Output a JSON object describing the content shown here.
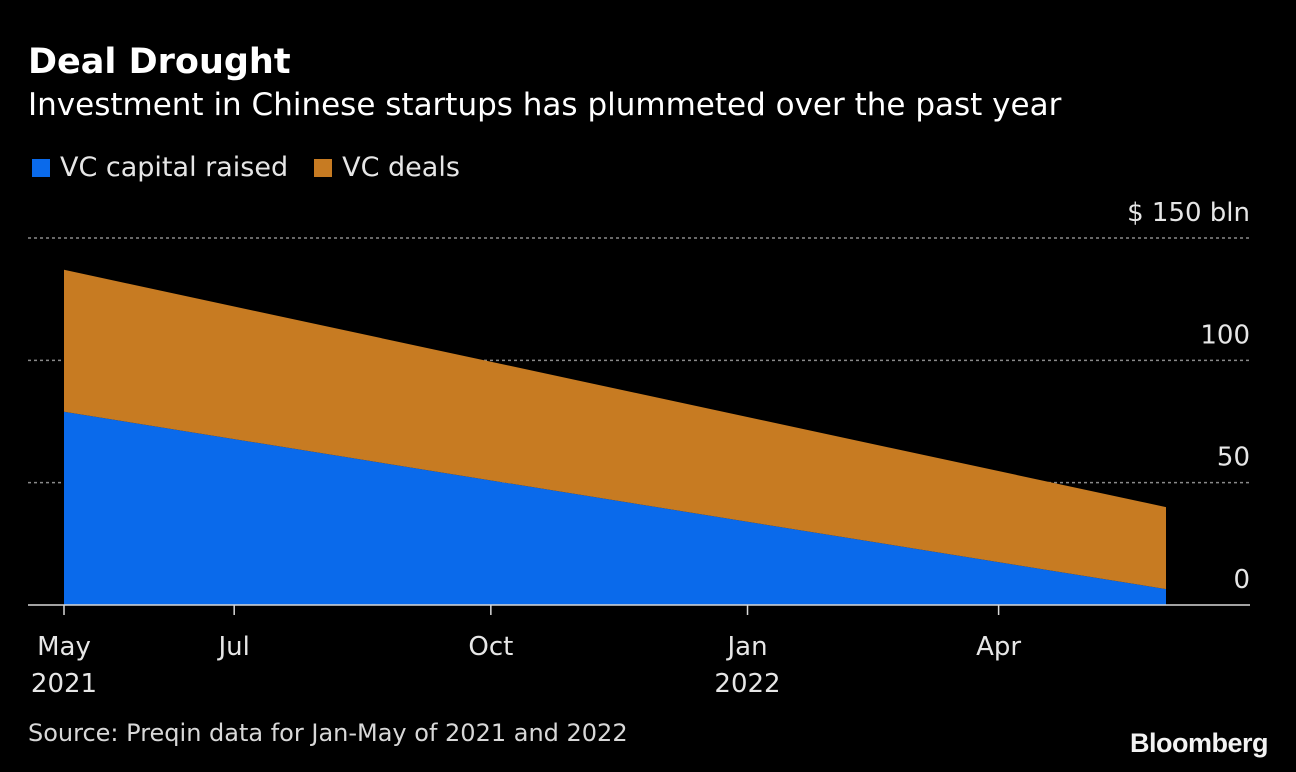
{
  "title": "Deal Drought",
  "subtitle": "Investment in Chinese startups has plummeted over the past year",
  "source": "Source: Preqin data for Jan-May of 2021 and 2022",
  "logo": "Bloomberg",
  "colors": {
    "background": "#000000",
    "vc_capital": "#0a6aeb",
    "vc_deals": "#c77b22",
    "grid": "#8a8a8a",
    "axis": "#d8d8d8"
  },
  "chart_data": {
    "type": "area",
    "stacked": true,
    "legend_position": "top-left",
    "grid": true,
    "ylim": [
      0,
      150
    ],
    "y_ticks": [
      {
        "value": 150,
        "label": "$ 150  bln"
      },
      {
        "value": 100,
        "label": "100"
      },
      {
        "value": 50,
        "label": "50"
      },
      {
        "value": 0,
        "label": "0"
      }
    ],
    "x_domain": [
      "2021-05-01",
      "2022-05-31"
    ],
    "x_ticks": [
      {
        "date": "2021-05-01",
        "label": "May",
        "year": "2021"
      },
      {
        "date": "2021-07-01",
        "label": "Jul",
        "year": ""
      },
      {
        "date": "2021-10-01",
        "label": "Oct",
        "year": ""
      },
      {
        "date": "2022-01-01",
        "label": "Jan",
        "year": "2022"
      },
      {
        "date": "2022-04-01",
        "label": "Apr",
        "year": ""
      }
    ],
    "x": [
      "2021-05-01",
      "2022-05-31"
    ],
    "series": [
      {
        "name": "VC capital raised",
        "color": "#0a6aeb",
        "values": [
          79,
          6.5
        ]
      },
      {
        "name": "VC deals",
        "color": "#c77b22",
        "values": [
          58,
          33.5
        ]
      }
    ]
  }
}
